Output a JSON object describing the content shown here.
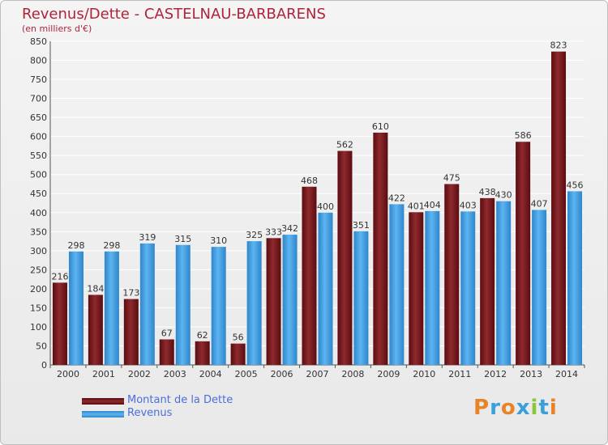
{
  "title": "Revenus/Dette - CASTELNAU-BARBARENS",
  "subtitle": "(en milliers d'€)",
  "colors": {
    "dette": "#7a1a1e",
    "revenus": "#3a9ae0",
    "title": "#b0233a",
    "legend_text": "#4b6fd8"
  },
  "legend": [
    {
      "label": "Montant de la Dette",
      "series": "dette"
    },
    {
      "label": "Revenus",
      "series": "revenus"
    }
  ],
  "logo": {
    "text": "Proxiti",
    "letter_colors": [
      "#e8832a",
      "#3aa0d8",
      "#e8832a",
      "#3aa0d8",
      "#8cc63f",
      "#3aa0d8",
      "#e8832a"
    ]
  },
  "chart_data": {
    "type": "bar",
    "title": "Revenus/Dette - CASTELNAU-BARBARENS",
    "subtitle": "(en milliers d'€)",
    "xlabel": "",
    "ylabel": "",
    "ylim": [
      0,
      850
    ],
    "y_ticks": [
      0,
      50,
      100,
      150,
      200,
      250,
      300,
      350,
      400,
      450,
      500,
      550,
      600,
      650,
      700,
      750,
      800,
      850
    ],
    "grid": true,
    "categories": [
      "2000",
      "2001",
      "2002",
      "2003",
      "2004",
      "2005",
      "2006",
      "2007",
      "2008",
      "2009",
      "2010",
      "2011",
      "2012",
      "2013",
      "2014"
    ],
    "series": [
      {
        "name": "Montant de la Dette",
        "key": "dette",
        "values": [
          216,
          184,
          173,
          67,
          62,
          56,
          333,
          468,
          562,
          610,
          401,
          475,
          438,
          586,
          823
        ]
      },
      {
        "name": "Revenus",
        "key": "revenus",
        "values": [
          298,
          298,
          319,
          315,
          310,
          325,
          342,
          400,
          351,
          422,
          404,
          403,
          430,
          407,
          456
        ]
      }
    ],
    "legend_position": "bottom-left"
  }
}
